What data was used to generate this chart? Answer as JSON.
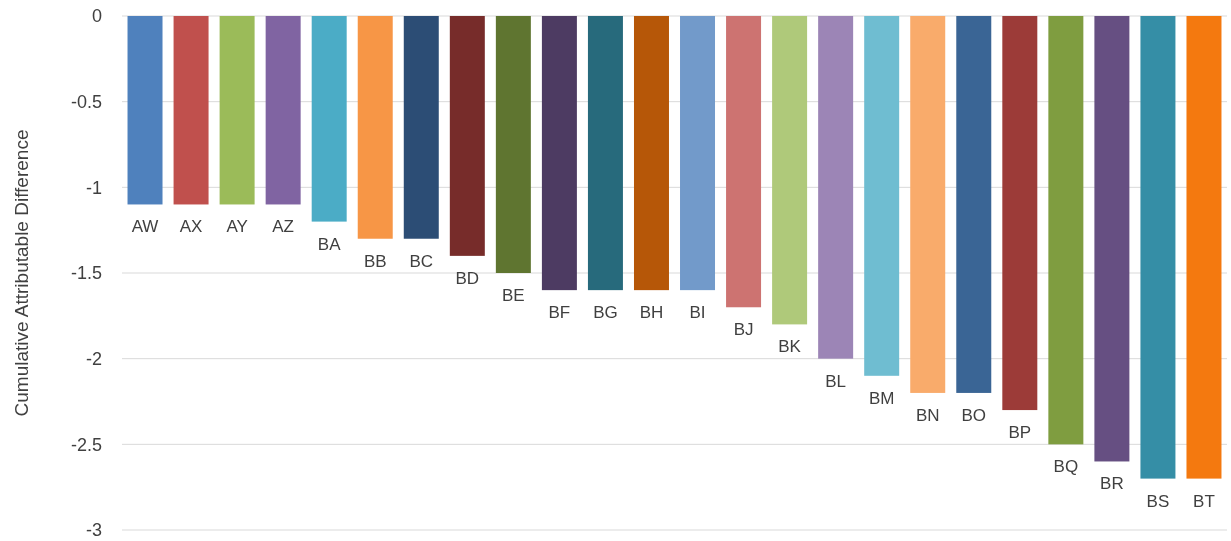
{
  "chart_data": {
    "type": "bar",
    "ylabel": "Cumulative Attributable Difference",
    "categories": [
      "AW",
      "AX",
      "AY",
      "AZ",
      "BA",
      "BB",
      "BC",
      "BD",
      "BE",
      "BF",
      "BG",
      "BH",
      "BI",
      "BJ",
      "BK",
      "BL",
      "BM",
      "BN",
      "BO",
      "BP",
      "BQ",
      "BR",
      "BS",
      "BT"
    ],
    "values": [
      -1.1,
      -1.1,
      -1.1,
      -1.1,
      -1.2,
      -1.3,
      -1.3,
      -1.4,
      -1.5,
      -1.6,
      -1.6,
      -1.6,
      -1.6,
      -1.7,
      -1.8,
      -2.0,
      -2.1,
      -2.2,
      -2.2,
      -2.3,
      -2.5,
      -2.6,
      -2.7,
      -2.7
    ],
    "colors": [
      "#4f81bd",
      "#c0504d",
      "#9bbb59",
      "#8064a2",
      "#4bacc6",
      "#f79646",
      "#2c4d75",
      "#772c2a",
      "#5f7530",
      "#4d3b62",
      "#276a7c",
      "#b65708",
      "#729aca",
      "#cd7371",
      "#afc97a",
      "#9c85b6",
      "#6fbdd1",
      "#f9ab6b",
      "#3a6595",
      "#9c3b38",
      "#7f9d40",
      "#664f82",
      "#358ea6",
      "#f4790f"
    ],
    "ylim": [
      -3,
      0
    ],
    "yticks": [
      0,
      -0.5,
      -1,
      -1.5,
      -2,
      -2.5,
      -3
    ],
    "grid": "y"
  }
}
